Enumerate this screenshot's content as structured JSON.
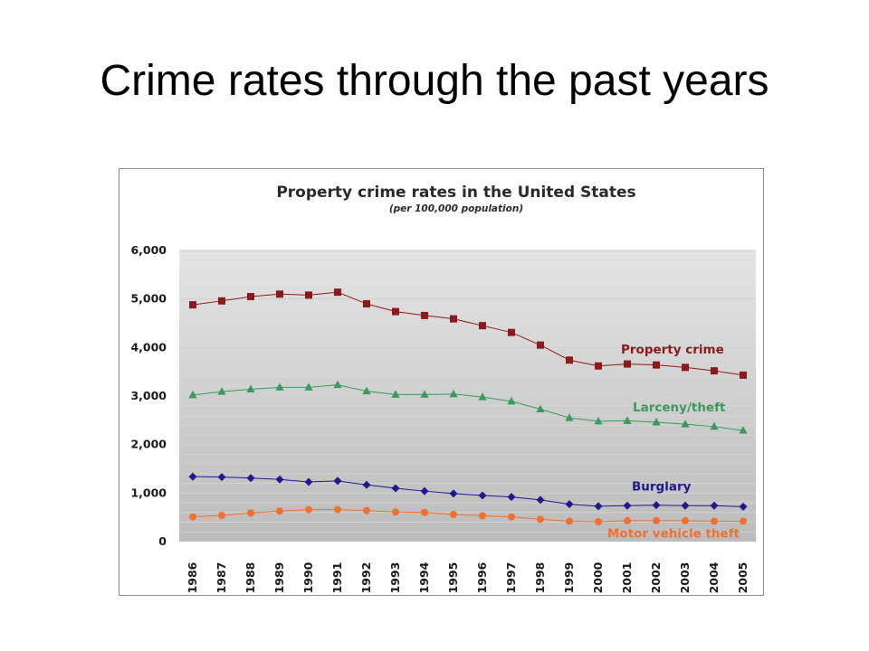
{
  "slide": {
    "title": "Crime rates through the past years"
  },
  "chart_data": {
    "type": "line",
    "title": "Property crime rates in the United States",
    "subtitle": "(per 100,000 population)",
    "xlabel": "",
    "ylabel": "",
    "ylim": [
      0,
      6000
    ],
    "y_ticks": [
      "0",
      "1,000",
      "2,000",
      "3,000",
      "4,000",
      "5,000",
      "6,000"
    ],
    "y_tick_values": [
      0,
      1000,
      2000,
      3000,
      4000,
      5000,
      6000
    ],
    "grid": true,
    "legend": "inline labels beside lines",
    "x": [
      "1986",
      "1987",
      "1988",
      "1989",
      "1990",
      "1991",
      "1992",
      "1993",
      "1994",
      "1995",
      "1996",
      "1997",
      "1998",
      "1999",
      "2000",
      "2001",
      "2002",
      "2003",
      "2004",
      "2005"
    ],
    "series": [
      {
        "name": "Property crime",
        "color": "#8b1a1a",
        "marker": "square",
        "values": [
          4880,
          4960,
          5050,
          5100,
          5080,
          5140,
          4900,
          4740,
          4660,
          4590,
          4450,
          4310,
          4050,
          3740,
          3620,
          3660,
          3640,
          3590,
          3520,
          3430
        ]
      },
      {
        "name": "Larceny/theft",
        "color": "#3a9a5c",
        "marker": "triangle",
        "values": [
          3020,
          3090,
          3140,
          3180,
          3180,
          3230,
          3100,
          3030,
          3030,
          3040,
          2980,
          2890,
          2730,
          2550,
          2480,
          2490,
          2460,
          2420,
          2370,
          2290
        ]
      },
      {
        "name": "Burglary",
        "color": "#1f1a8c",
        "marker": "diamond",
        "values": [
          1340,
          1330,
          1310,
          1280,
          1230,
          1250,
          1170,
          1100,
          1040,
          990,
          950,
          920,
          860,
          770,
          730,
          740,
          750,
          740,
          740,
          720
        ]
      },
      {
        "name": "Motor vehicle theft",
        "color": "#f07030",
        "marker": "circle",
        "values": [
          510,
          540,
          590,
          630,
          660,
          660,
          640,
          610,
          600,
          560,
          530,
          510,
          460,
          420,
          410,
          430,
          430,
          430,
          420,
          420
        ]
      }
    ]
  }
}
